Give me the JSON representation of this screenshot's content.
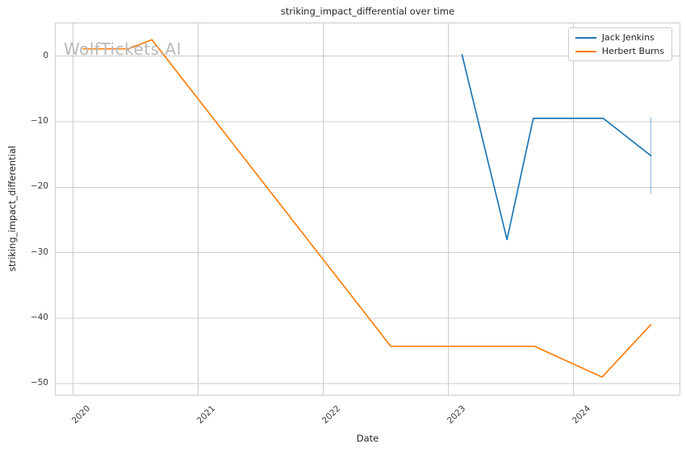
{
  "figure": {
    "watermark": "WolfTickets.AI"
  },
  "colors": {
    "background": "#ffffff",
    "grid": "#cccccc",
    "spine": "#cccccc",
    "text": "#262626",
    "tick_text": "#3b3b3b",
    "watermark": "#b9b9b9",
    "legend_border": "#cccccc",
    "error_bar": "rgba(31,119,180,0.4)"
  },
  "chart_data": {
    "type": "line",
    "title": "striking_impact_differential over time",
    "xlabel": "Date",
    "ylabel": "striking_impact_differential",
    "grid": true,
    "legend_position": "upper right",
    "xlim": [
      2019.86,
      2024.85
    ],
    "ylim": [
      -51.7,
      5.0
    ],
    "x_ticks": [
      {
        "value": 2020,
        "label": "2020"
      },
      {
        "value": 2021,
        "label": "2021"
      },
      {
        "value": 2022,
        "label": "2022"
      },
      {
        "value": 2023,
        "label": "2023"
      },
      {
        "value": 2024,
        "label": "2024"
      }
    ],
    "y_ticks": [
      {
        "value": 0,
        "label": "0"
      },
      {
        "value": -10,
        "label": "−10"
      },
      {
        "value": -20,
        "label": "−20"
      },
      {
        "value": -30,
        "label": "−30"
      },
      {
        "value": -40,
        "label": "−40"
      },
      {
        "value": -50,
        "label": "−50"
      }
    ],
    "series": [
      {
        "name": "Jack Jenkins",
        "color": "#1f77b4",
        "points": [
          {
            "x": 2023.11,
            "y": 0.2
          },
          {
            "x": 2023.47,
            "y": -28.0
          },
          {
            "x": 2023.68,
            "y": -9.5
          },
          {
            "x": 2024.24,
            "y": -9.5
          },
          {
            "x": 2024.62,
            "y": -15.2
          }
        ]
      },
      {
        "name": "Herbert Burns",
        "color": "#ff7f0e",
        "points": [
          {
            "x": 2020.08,
            "y": 1.1
          },
          {
            "x": 2020.44,
            "y": 1.1
          },
          {
            "x": 2020.63,
            "y": 2.5
          },
          {
            "x": 2022.54,
            "y": -44.3
          },
          {
            "x": 2023.69,
            "y": -44.3
          },
          {
            "x": 2024.23,
            "y": -49.0
          },
          {
            "x": 2024.62,
            "y": -41.0
          }
        ]
      }
    ],
    "error_bars": [
      {
        "series": "Jack Jenkins",
        "x": 2024.62,
        "y_low": -21.0,
        "y_high": -9.3
      }
    ]
  }
}
